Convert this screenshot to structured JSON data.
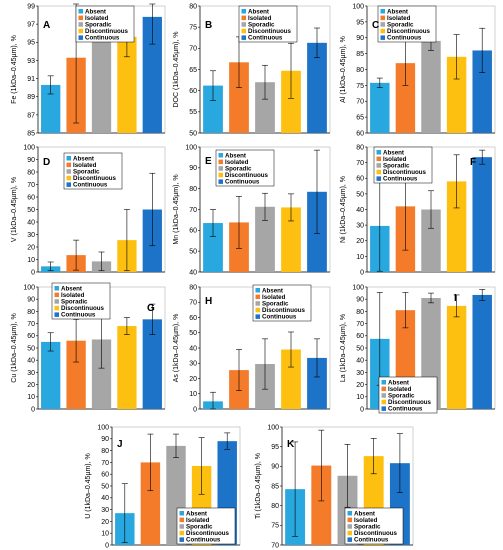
{
  "categories": [
    "Absent",
    "Isolated",
    "Sporadic",
    "Discontinuous",
    "Continuous"
  ],
  "colors": [
    "#29a8df",
    "#f47b2a",
    "#a6a6a6",
    "#fdc010",
    "#1d73c7"
  ],
  "chart_data": [
    {
      "type": "bar",
      "panel": "A",
      "ylabel": "Fe (1kDa–0.45µm), %",
      "ylim": [
        85,
        99
      ],
      "yticks": [
        85,
        87,
        89,
        91,
        93,
        95,
        97,
        99
      ],
      "values": [
        90.3,
        93.3,
        97.1,
        95.6,
        97.8
      ],
      "errors": [
        1.0,
        7.2,
        1.2,
        2.2,
        3.0
      ]
    },
    {
      "type": "bar",
      "panel": "B",
      "ylabel": "DOC (1kDa–0.45µm), %",
      "ylim": [
        50,
        80
      ],
      "yticks": [
        50,
        55,
        60,
        65,
        70,
        75,
        80
      ],
      "values": [
        61.2,
        66.7,
        62.0,
        64.7,
        71.3
      ],
      "errors": [
        3.5,
        6.0,
        4.0,
        6.5,
        3.5
      ]
    },
    {
      "type": "bar",
      "panel": "C",
      "ylabel": "Al (1kDa–0.45µm), %",
      "ylim": [
        60,
        100
      ],
      "yticks": [
        60,
        65,
        70,
        75,
        80,
        85,
        90,
        95,
        100
      ],
      "values": [
        75.8,
        82.0,
        89.0,
        84.0,
        86.0
      ],
      "errors": [
        1.5,
        7.0,
        3.0,
        7.0,
        7.0
      ]
    },
    {
      "type": "bar",
      "panel": "D",
      "ylabel": "V (1kDa–0.45µm), %",
      "ylim": [
        0,
        100
      ],
      "yticks": [
        0,
        10,
        20,
        30,
        40,
        50,
        60,
        70,
        80,
        90,
        100
      ],
      "values": [
        4.5,
        13.5,
        8.5,
        25.5,
        50.0
      ],
      "errors": [
        3.5,
        12.0,
        7.5,
        24.5,
        29.0
      ]
    },
    {
      "type": "bar",
      "panel": "E",
      "ylabel": "Mn (1kDa–0.45µm), %",
      "ylim": [
        40,
        100
      ],
      "yticks": [
        40,
        50,
        60,
        70,
        80,
        90,
        100
      ],
      "values": [
        63.5,
        63.8,
        71.3,
        71.0,
        78.5
      ],
      "errors": [
        6.5,
        12.5,
        6.5,
        6.5,
        20.0
      ]
    },
    {
      "type": "bar",
      "panel": "F",
      "ylabel": "Ni (1kDa–0.45µm), %",
      "ylim": [
        0,
        80
      ],
      "yticks": [
        0,
        10,
        20,
        30,
        40,
        50,
        60,
        70,
        80
      ],
      "values": [
        29.5,
        42.0,
        40.0,
        58.0,
        73.5
      ],
      "errors": [
        29.0,
        28.0,
        12.0,
        17.0,
        4.5
      ]
    },
    {
      "type": "bar",
      "panel": "G",
      "ylabel": "Cu (1kDa–0.45µm), %",
      "ylim": [
        0,
        100
      ],
      "yticks": [
        0,
        10,
        20,
        30,
        40,
        50,
        60,
        70,
        80,
        90,
        100
      ],
      "values": [
        55.0,
        56.0,
        57.0,
        68.0,
        73.5
      ],
      "errors": [
        7.5,
        17.5,
        23.5,
        7.0,
        12.5
      ]
    },
    {
      "type": "bar",
      "panel": "H",
      "ylabel": "As (1kDa–0.45µm), %",
      "ylim": [
        0,
        80
      ],
      "yticks": [
        0,
        10,
        20,
        30,
        40,
        50,
        60,
        70,
        80
      ],
      "values": [
        5.0,
        25.5,
        29.5,
        39.0,
        33.5
      ],
      "errors": [
        6.0,
        13.5,
        16.5,
        11.5,
        12.5
      ]
    },
    {
      "type": "bar",
      "panel": "I",
      "ylabel": "La (1kDa–0.45µm), %",
      "ylim": [
        0,
        100
      ],
      "yticks": [
        0,
        10,
        20,
        30,
        40,
        50,
        60,
        70,
        80,
        90,
        100
      ],
      "values": [
        57.5,
        81.0,
        91.0,
        84.5,
        93.5
      ],
      "errors": [
        38.0,
        14.5,
        4.0,
        9.0,
        4.5
      ]
    },
    {
      "type": "bar",
      "panel": "J",
      "ylabel": "U (1kDa–0.45µm), %",
      "ylim": [
        0,
        100
      ],
      "yticks": [
        0,
        10,
        20,
        30,
        40,
        50,
        60,
        70,
        80,
        90,
        100
      ],
      "values": [
        27.0,
        70.0,
        84.0,
        67.0,
        88.0
      ],
      "errors": [
        25.0,
        24.0,
        10.0,
        24.0,
        7.0
      ]
    },
    {
      "type": "bar",
      "panel": "K",
      "ylabel": "Ti (1kDa–0.45µm), %",
      "ylim": [
        70,
        100
      ],
      "yticks": [
        70,
        75,
        80,
        85,
        90,
        95,
        100
      ],
      "values": [
        84.2,
        90.2,
        87.6,
        92.6,
        90.8
      ],
      "errors": [
        12.0,
        9.0,
        8.0,
        4.5,
        7.5
      ]
    }
  ]
}
